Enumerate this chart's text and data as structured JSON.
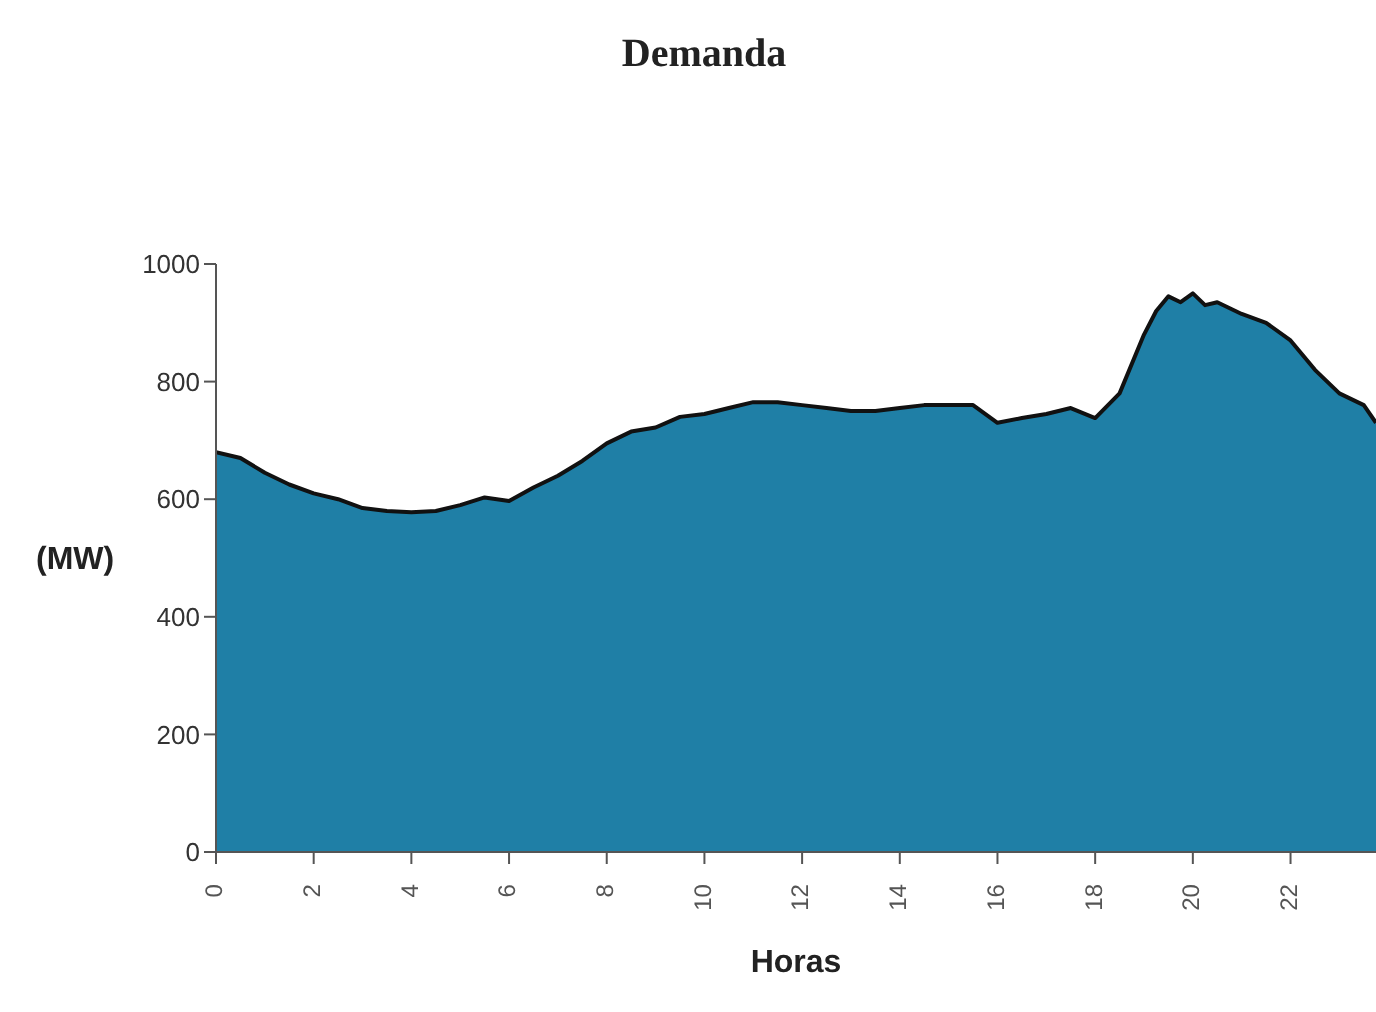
{
  "chart_data": {
    "type": "area",
    "title": "Demanda",
    "xlabel": "Horas",
    "ylabel": "(MW)",
    "x": [
      0,
      0.5,
      1,
      1.5,
      2,
      2.5,
      3,
      3.5,
      4,
      4.5,
      5,
      5.5,
      6,
      6.5,
      7,
      7.5,
      8,
      8.5,
      9,
      9.5,
      10,
      10.5,
      11,
      11.5,
      12,
      12.5,
      13,
      13.5,
      14,
      14.5,
      15,
      15.5,
      16,
      16.5,
      17,
      17.5,
      18,
      18.5,
      19,
      19.25,
      19.5,
      19.75,
      20,
      20.25,
      20.5,
      21,
      21.5,
      22,
      22.5,
      23,
      23.5,
      23.75
    ],
    "series": [
      {
        "color": "#1f7fa6",
        "values": [
          680,
          670,
          645,
          625,
          610,
          600,
          585,
          580,
          578,
          580,
          590,
          603,
          597,
          620,
          640,
          665,
          695,
          715,
          722,
          740,
          745,
          755,
          765,
          765,
          760,
          755,
          750,
          750,
          755,
          760,
          760,
          760,
          730,
          738,
          745,
          755,
          738,
          780,
          880,
          920,
          945,
          935,
          950,
          930,
          935,
          915,
          900,
          870,
          820,
          780,
          760,
          730
        ]
      }
    ],
    "xlim": [
      0,
      23.75
    ],
    "xticks": [
      0,
      2,
      4,
      6,
      8,
      10,
      12,
      14,
      16,
      18,
      20,
      22
    ],
    "ylim": [
      0,
      1000
    ],
    "yticks": [
      0,
      200,
      400,
      600,
      800,
      1000
    ]
  }
}
